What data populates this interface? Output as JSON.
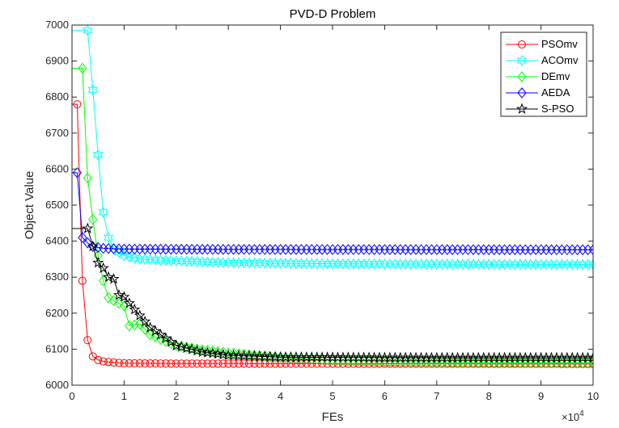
{
  "chart_data": {
    "type": "line",
    "title": "PVD-D Problem",
    "xlabel": "FEs",
    "ylabel": "Object Value",
    "x_exponent_label": "×10",
    "x_exponent_power": "4",
    "xlim": [
      0,
      10
    ],
    "ylim": [
      6000,
      7000
    ],
    "xticks": [
      "0",
      "1",
      "2",
      "3",
      "4",
      "5",
      "6",
      "7",
      "8",
      "9",
      "10"
    ],
    "yticks": [
      "6000",
      "6100",
      "6200",
      "6300",
      "6400",
      "6500",
      "6600",
      "6700",
      "6800",
      "6900",
      "7000"
    ],
    "grid": false,
    "legend_placement": "top-right",
    "series": [
      {
        "name": "PSOmv",
        "color": "#ff0000",
        "marker": "circle",
        "start_y": 6780,
        "anchors": [
          [
            0.1,
            6780
          ],
          [
            0.2,
            6290
          ],
          [
            0.3,
            6125
          ],
          [
            0.4,
            6080
          ],
          [
            0.5,
            6070
          ],
          [
            0.6,
            6066
          ],
          [
            0.8,
            6063
          ],
          [
            1.0,
            6061
          ],
          [
            2.0,
            6060
          ],
          [
            10.0,
            6059
          ]
        ]
      },
      {
        "name": "ACOmv",
        "color": "#00ffff",
        "marker": "hexagram",
        "start_y": 6985,
        "anchors": [
          [
            0.3,
            6985
          ],
          [
            0.4,
            6820
          ],
          [
            0.5,
            6640
          ],
          [
            0.6,
            6480
          ],
          [
            0.7,
            6410
          ],
          [
            0.8,
            6378
          ],
          [
            1.0,
            6360
          ],
          [
            1.3,
            6350
          ],
          [
            2.0,
            6345
          ],
          [
            3.0,
            6340
          ],
          [
            5.0,
            6337
          ],
          [
            7.0,
            6336
          ],
          [
            10.0,
            6335
          ]
        ]
      },
      {
        "name": "DEmv",
        "color": "#00ff00",
        "marker": "diamond",
        "start_y": 6880,
        "anchors": [
          [
            0.2,
            6880
          ],
          [
            0.3,
            6575
          ],
          [
            0.4,
            6460
          ],
          [
            0.5,
            6360
          ],
          [
            0.6,
            6290
          ],
          [
            0.7,
            6243
          ],
          [
            0.8,
            6235
          ],
          [
            1.0,
            6220
          ],
          [
            1.1,
            6165
          ],
          [
            1.3,
            6170
          ],
          [
            1.5,
            6140
          ],
          [
            2.0,
            6110
          ],
          [
            2.5,
            6098
          ],
          [
            3.0,
            6090
          ],
          [
            3.5,
            6083
          ],
          [
            4.0,
            6077
          ],
          [
            5.0,
            6070
          ],
          [
            6.0,
            6066
          ],
          [
            8.0,
            6063
          ],
          [
            10.0,
            6062
          ]
        ]
      },
      {
        "name": "AEDA",
        "color": "#0000ff",
        "marker": "diamond",
        "start_y": 6590,
        "anchors": [
          [
            0.1,
            6590
          ],
          [
            0.2,
            6410
          ],
          [
            0.3,
            6395
          ],
          [
            0.4,
            6385
          ],
          [
            0.6,
            6380
          ],
          [
            1.0,
            6378
          ],
          [
            3.0,
            6377
          ],
          [
            10.0,
            6376
          ]
        ]
      },
      {
        "name": "S-PSO",
        "color": "#000000",
        "marker": "pentagram",
        "start_y": 6435,
        "anchors": [
          [
            0.3,
            6435
          ],
          [
            0.4,
            6385
          ],
          [
            0.5,
            6340
          ],
          [
            0.6,
            6325
          ],
          [
            0.7,
            6300
          ],
          [
            0.8,
            6295
          ],
          [
            0.9,
            6250
          ],
          [
            1.0,
            6245
          ],
          [
            1.2,
            6210
          ],
          [
            1.5,
            6160
          ],
          [
            2.0,
            6110
          ],
          [
            2.5,
            6092
          ],
          [
            3.0,
            6083
          ],
          [
            4.0,
            6078
          ],
          [
            5.0,
            6077
          ],
          [
            7.0,
            6076
          ],
          [
            10.0,
            6076
          ]
        ]
      }
    ]
  }
}
